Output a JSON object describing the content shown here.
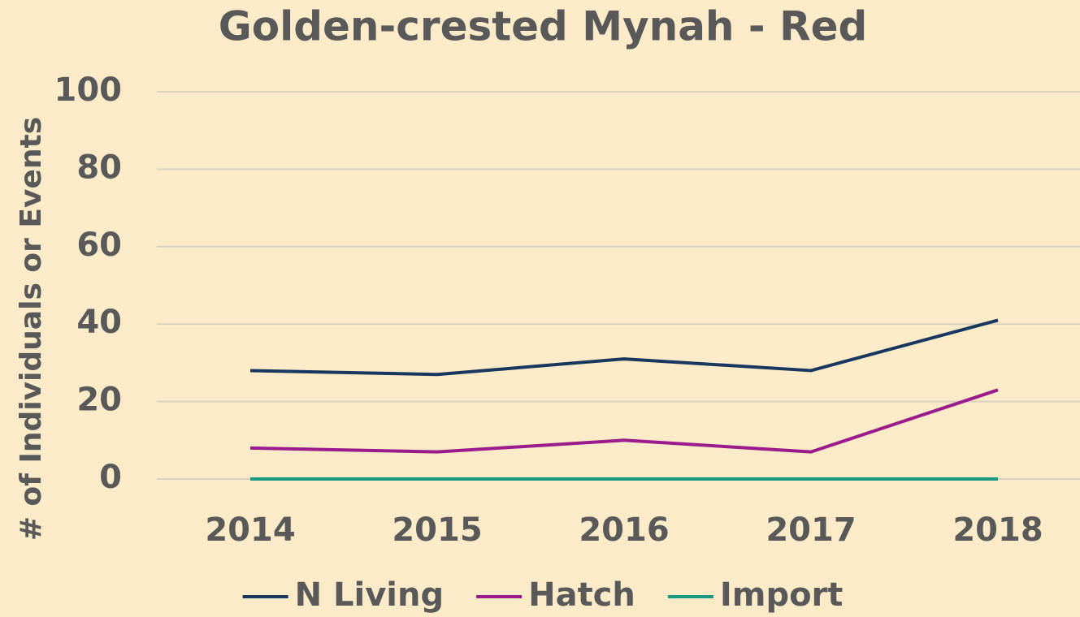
{
  "chart_data": {
    "type": "line",
    "title": "Golden-crested Mynah - Red",
    "ylabel": "# of Individuals or Events",
    "categories": [
      "2014",
      "2015",
      "2016",
      "2017",
      "2018"
    ],
    "series": [
      {
        "name": "N Living",
        "color": "#17375e",
        "values": [
          28,
          27,
          31,
          28,
          41
        ]
      },
      {
        "name": "Hatch",
        "color": "#9b1b8c",
        "values": [
          8,
          7,
          10,
          7,
          23
        ]
      },
      {
        "name": "Import",
        "color": "#1a9a80",
        "values": [
          0,
          0,
          0,
          0,
          0
        ]
      }
    ],
    "ylim": [
      0,
      100
    ],
    "yticks": [
      0,
      20,
      40,
      60,
      80,
      100
    ],
    "grid": true,
    "legend": "bottom"
  }
}
